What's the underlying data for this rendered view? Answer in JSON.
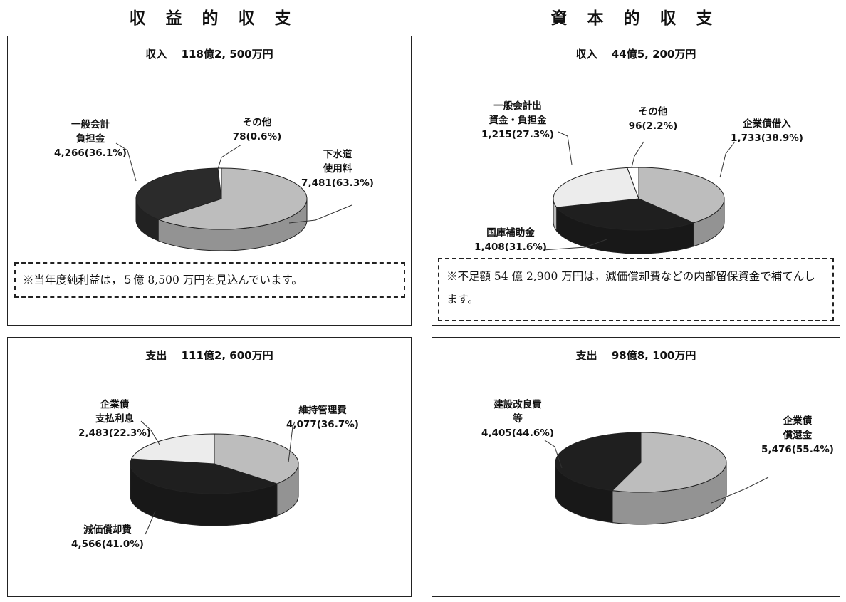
{
  "titles": {
    "revenue_side": "収 益 的 収 支",
    "capital_side": "資 本 的 収 支"
  },
  "notes": {
    "revenue_income": "※当年度純利益は，５億 8,500 万円を見込んでいます。",
    "capital_income": "※不足額 54 億 2,900 万円は，減価償却費などの内部留保資金で補てんします。"
  },
  "colors": {
    "light_gray": "#bdbdbd",
    "dark": "#2b2b2b",
    "darker": "#1f1f1f",
    "very_light": "#ececec",
    "white": "#ffffff"
  },
  "chart_data": [
    {
      "id": "revenue_income",
      "type": "pie",
      "title": "収入　 118億2, 500万円",
      "slices": [
        {
          "label": [
            "下水道",
            "使用料",
            "7,481(63.3%)"
          ],
          "value": 7481,
          "percent": 63.3,
          "color": "#bdbdbd"
        },
        {
          "label": [
            "一般会計",
            "負担金",
            "4,266(36.1%)"
          ],
          "value": 4266,
          "percent": 36.1,
          "color": "#2b2b2b"
        },
        {
          "label": [
            "その他",
            "78(0.6%)"
          ],
          "value": 78,
          "percent": 0.6,
          "color": "#ffffff"
        }
      ]
    },
    {
      "id": "capital_income",
      "type": "pie",
      "title": "収入　 44億5, 200万円",
      "slices": [
        {
          "label": [
            "企業債借入",
            "1,733(38.9%)"
          ],
          "value": 1733,
          "percent": 38.9,
          "color": "#bdbdbd"
        },
        {
          "label": [
            "国庫補助金",
            "1,408(31.6%)"
          ],
          "value": 1408,
          "percent": 31.6,
          "color": "#1f1f1f"
        },
        {
          "label": [
            "一般会計出",
            "資金・負担金",
            "1,215(27.3%)"
          ],
          "value": 1215,
          "percent": 27.3,
          "color": "#ececec"
        },
        {
          "label": [
            "その他",
            "96(2.2%)"
          ],
          "value": 96,
          "percent": 2.2,
          "color": "#ffffff"
        }
      ]
    },
    {
      "id": "revenue_expense",
      "type": "pie",
      "title": "支出　 111億2, 600万円",
      "slices": [
        {
          "label": [
            "維持管理費",
            "4,077(36.7%)"
          ],
          "value": 4077,
          "percent": 36.7,
          "color": "#bdbdbd"
        },
        {
          "label": [
            "減価償却費",
            "4,566(41.0%)"
          ],
          "value": 4566,
          "percent": 41.0,
          "color": "#1f1f1f"
        },
        {
          "label": [
            "企業債",
            "支払利息",
            "2,483(22.3%)"
          ],
          "value": 2483,
          "percent": 22.3,
          "color": "#ececec"
        }
      ]
    },
    {
      "id": "capital_expense",
      "type": "pie",
      "title": "支出　 98億8, 100万円",
      "slices": [
        {
          "label": [
            "企業債",
            "償還金",
            "5,476(55.4%)"
          ],
          "value": 5476,
          "percent": 55.4,
          "color": "#bdbdbd"
        },
        {
          "label": [
            "建設改良費",
            "等",
            "4,405(44.6%)"
          ],
          "value": 4405,
          "percent": 44.6,
          "color": "#1f1f1f"
        }
      ]
    }
  ]
}
